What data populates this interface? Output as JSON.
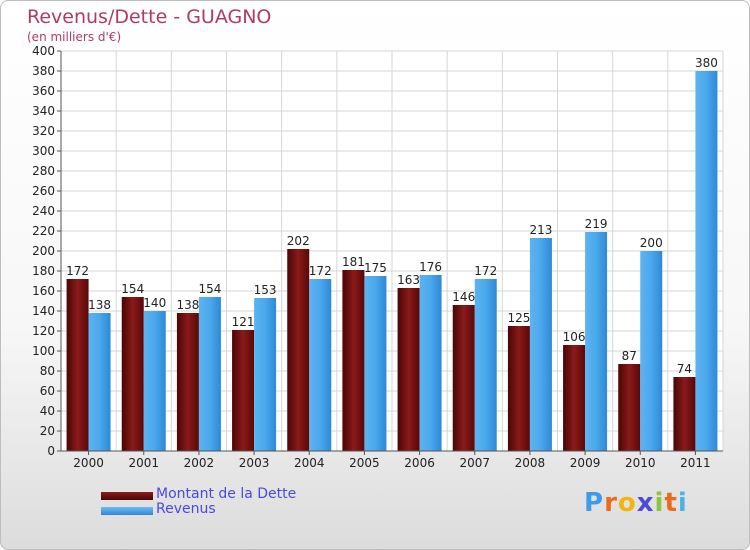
{
  "title": "Revenus/Dette - GUAGNO",
  "subtitle": "(en milliers d'€)",
  "brand": {
    "text": "Proxiti",
    "letters": [
      "P",
      "r",
      "o",
      "x",
      "i",
      "t",
      "i"
    ],
    "letter_colors": [
      "#3d9be9",
      "#ec6a1c",
      "#f2b410",
      "#4b4bd6",
      "#8cc63f",
      "#ec6a1c",
      "#4bb3e6"
    ]
  },
  "colors": {
    "dette": "#6e0b0b",
    "revenus": "#3d9be9",
    "grid": "#d6d6d6",
    "axis_text": "#222222",
    "legend_text": "#4a4ae0",
    "title": "#b03a67"
  },
  "legend": [
    {
      "label": "Montant de la Dette",
      "series": "dette"
    },
    {
      "label": "Revenus",
      "series": "revenus"
    }
  ],
  "chart_data": {
    "type": "bar",
    "title": "Revenus/Dette - GUAGNO",
    "ylabel": "(en milliers d'€)",
    "xlabel": "",
    "ylim": [
      0,
      400
    ],
    "ytick_step": 20,
    "grid": true,
    "legend_position": "bottom-left",
    "categories": [
      "2000",
      "2001",
      "2002",
      "2003",
      "2004",
      "2005",
      "2006",
      "2007",
      "2008",
      "2009",
      "2010",
      "2011"
    ],
    "series": [
      {
        "name": "Montant de la Dette",
        "key": "dette",
        "values": [
          172,
          154,
          138,
          121,
          202,
          181,
          163,
          146,
          125,
          106,
          87,
          74
        ]
      },
      {
        "name": "Revenus",
        "key": "revenus",
        "values": [
          138,
          140,
          154,
          153,
          172,
          175,
          176,
          172,
          213,
          219,
          200,
          380
        ]
      }
    ]
  }
}
